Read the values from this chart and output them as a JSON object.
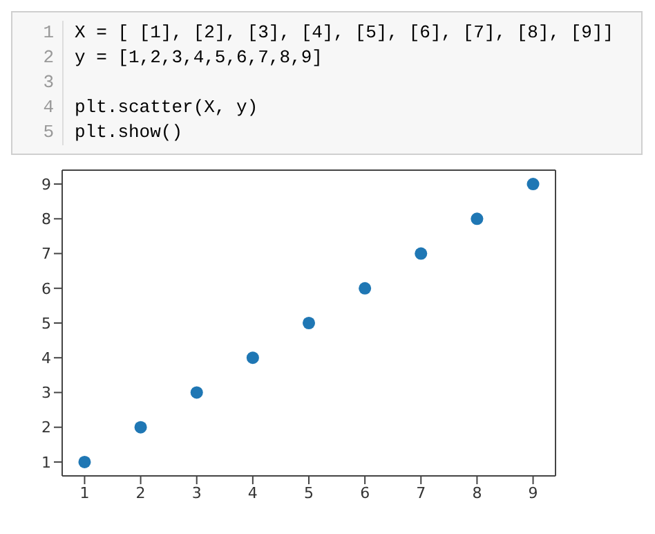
{
  "chart_data": {
    "type": "scatter",
    "annotations": [
      "1 X = [ [1], [2], [3], [4], [5], [6], [7], [8], [9]]",
      "2 y = [1,2,3,4,5,6,7,8,9]",
      "3",
      "4 plt.scatter(X, y)",
      "5 plt.show()"
    ],
    "x": [
      1,
      2,
      3,
      4,
      5,
      6,
      7,
      8,
      9
    ],
    "series": [
      {
        "color": "#1f77b4",
        "values": [
          1,
          2,
          3,
          4,
          5,
          6,
          7,
          8,
          9
        ]
      }
    ],
    "xlim": [
      0.6,
      9.4
    ],
    "ylim": [
      0.6,
      9.4
    ],
    "xticks": [
      1,
      2,
      3,
      4,
      5,
      6,
      7,
      8,
      9
    ],
    "yticks": [
      1,
      2,
      3,
      4,
      5,
      6,
      7,
      8,
      9
    ],
    "grid": false,
    "legend": false,
    "marker": "circle"
  }
}
